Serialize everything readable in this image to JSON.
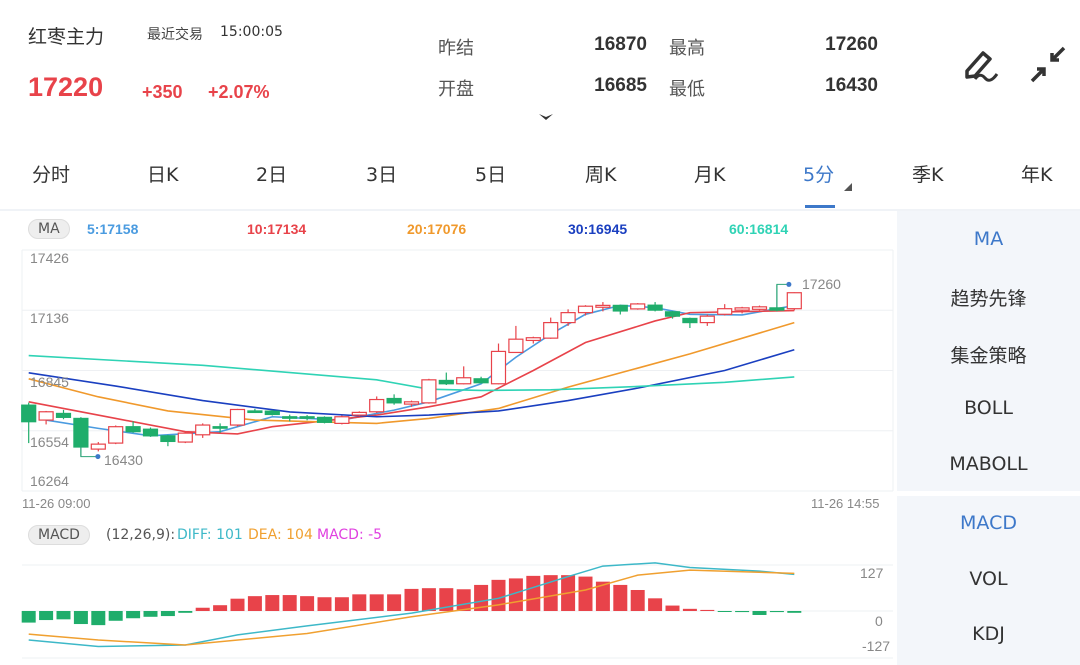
{
  "header": {
    "instrument": "红枣主力",
    "trade_label": "最近交易",
    "trade_time": "15:00:05",
    "last_price": "17220",
    "change": "+350",
    "change_pct": "+2.07%",
    "quotes": [
      {
        "label": "昨结",
        "value": "16870"
      },
      {
        "label": "最高",
        "value": "17260"
      },
      {
        "label": "开盘",
        "value": "16685"
      },
      {
        "label": "最低",
        "value": "16430"
      }
    ],
    "icons": [
      "draw-icon",
      "collapse-icon",
      "chevron-down-icon"
    ]
  },
  "tabs": [
    {
      "label": "分时"
    },
    {
      "label": "日K"
    },
    {
      "label": "2日"
    },
    {
      "label": "3日"
    },
    {
      "label": "5日"
    },
    {
      "label": "周K"
    },
    {
      "label": "月K"
    },
    {
      "label": "5分",
      "active": true
    },
    {
      "label": "季K"
    },
    {
      "label": "年K"
    }
  ],
  "side_main": [
    "MA",
    "趋势先锋",
    "集金策略",
    "BOLL",
    "MABOLL"
  ],
  "side_sub": [
    "MACD",
    "VOL",
    "KDJ"
  ],
  "colors": {
    "up": "#e8434a",
    "down": "#1fad6b",
    "accent": "#3d78c9",
    "ma5": "#4a9be0",
    "ma10": "#e8434a",
    "ma20": "#f0992c",
    "ma30": "#1a3fc0",
    "ma60": "#2fd3b5",
    "diff": "#3db8c8",
    "dea": "#f0a030",
    "macd": "#e040e0"
  },
  "main_chart": {
    "indicator_button": "MA",
    "ma_values": [
      {
        "label": "5:17158",
        "color": "#4a9be0"
      },
      {
        "label": "10:17134",
        "color": "#e8434a"
      },
      {
        "label": "20:17076",
        "color": "#f0992c"
      },
      {
        "label": "30:16945",
        "color": "#1a3fc0"
      },
      {
        "label": "60:16814",
        "color": "#2fd3b5"
      }
    ],
    "y_ticks": [
      "17426",
      "17136",
      "16845",
      "16554",
      "16264"
    ],
    "x_start": "11-26 09:00",
    "x_end": "11-26 14:55",
    "high_marker": "17260",
    "low_marker": "16430"
  },
  "sub_chart": {
    "indicator_button": "MACD",
    "params": "(12,26,9):",
    "diff_label": "DIFF: 101",
    "dea_label": "DEA: 104",
    "macd_label": "MACD: -5",
    "y_ticks": [
      "127",
      "0",
      "-127"
    ]
  },
  "chart_data": [
    {
      "type": "candlestick",
      "x_range": [
        "11-26 09:00",
        "11-26 14:55"
      ],
      "ylim": [
        16264,
        17426
      ],
      "grid": true,
      "candles_ohlc": [
        [
          16678,
          16690,
          16495,
          16598
        ],
        [
          16606,
          16650,
          16585,
          16646
        ],
        [
          16638,
          16655,
          16610,
          16619
        ],
        [
          16614,
          16620,
          16430,
          16476
        ],
        [
          16466,
          16500,
          16455,
          16490
        ],
        [
          16495,
          16580,
          16490,
          16574
        ],
        [
          16574,
          16600,
          16545,
          16550
        ],
        [
          16562,
          16570,
          16525,
          16530
        ],
        [
          16530,
          16535,
          16480,
          16503
        ],
        [
          16500,
          16548,
          16495,
          16543
        ],
        [
          16535,
          16590,
          16520,
          16582
        ],
        [
          16574,
          16590,
          16545,
          16572
        ],
        [
          16582,
          16660,
          16575,
          16657
        ],
        [
          16650,
          16660,
          16640,
          16648
        ],
        [
          16649,
          16655,
          16628,
          16633
        ],
        [
          16622,
          16632,
          16600,
          16620
        ],
        [
          16622,
          16630,
          16605,
          16621
        ],
        [
          16619,
          16624,
          16590,
          16595
        ],
        [
          16590,
          16628,
          16585,
          16622
        ],
        [
          16630,
          16648,
          16625,
          16643
        ],
        [
          16646,
          16720,
          16640,
          16705
        ],
        [
          16710,
          16730,
          16680,
          16689
        ],
        [
          16683,
          16700,
          16670,
          16694
        ],
        [
          16689,
          16805,
          16685,
          16800
        ],
        [
          16797,
          16835,
          16775,
          16781
        ],
        [
          16781,
          16865,
          16778,
          16810
        ],
        [
          16805,
          16815,
          16782,
          16786
        ],
        [
          16781,
          16975,
          16778,
          16937
        ],
        [
          16932,
          17060,
          16930,
          16996
        ],
        [
          16990,
          17008,
          16975,
          17003
        ],
        [
          17001,
          17100,
          16998,
          17076
        ],
        [
          17076,
          17140,
          17060,
          17124
        ],
        [
          17124,
          17160,
          17110,
          17155
        ],
        [
          17150,
          17175,
          17130,
          17159
        ],
        [
          17159,
          17162,
          17115,
          17132
        ],
        [
          17142,
          17170,
          17138,
          17166
        ],
        [
          17160,
          17175,
          17130,
          17136
        ],
        [
          17128,
          17132,
          17095,
          17107
        ],
        [
          17096,
          17100,
          17050,
          17076
        ],
        [
          17076,
          17115,
          17060,
          17107
        ],
        [
          17116,
          17165,
          17110,
          17143
        ],
        [
          17136,
          17152,
          17120,
          17147
        ],
        [
          17140,
          17158,
          17135,
          17152
        ],
        [
          17147,
          17260,
          17130,
          17136
        ],
        [
          17143,
          17222,
          17135,
          17220
        ]
      ],
      "series": [
        {
          "name": "MA5",
          "points": [
            [
              1,
              16606
            ],
            [
              4,
              16566
            ],
            [
              7,
              16530
            ],
            [
              11,
              16550
            ],
            [
              14,
              16622
            ],
            [
              18,
              16606
            ],
            [
              21,
              16654
            ],
            [
              23,
              16694
            ],
            [
              26,
              16781
            ],
            [
              28,
              16909
            ],
            [
              30,
              17020
            ],
            [
              32,
              17116
            ],
            [
              34,
              17159
            ],
            [
              36,
              17148
            ],
            [
              38,
              17116
            ],
            [
              41,
              17113
            ],
            [
              44,
              17158
            ]
          ]
        },
        {
          "name": "MA10",
          "points": [
            [
              0,
              16694
            ],
            [
              5,
              16614
            ],
            [
              9,
              16550
            ],
            [
              12,
              16539
            ],
            [
              14,
              16574
            ],
            [
              20,
              16630
            ],
            [
              23,
              16670
            ],
            [
              26,
              16718
            ],
            [
              29,
              16845
            ],
            [
              32,
              16980
            ],
            [
              36,
              17084
            ],
            [
              38,
              17124
            ],
            [
              44,
              17134
            ]
          ]
        },
        {
          "name": "MA20",
          "points": [
            [
              0,
              16805
            ],
            [
              4,
              16718
            ],
            [
              8,
              16650
            ],
            [
              13,
              16606
            ],
            [
              20,
              16590
            ],
            [
              23,
              16614
            ],
            [
              27,
              16662
            ],
            [
              31,
              16765
            ],
            [
              38,
              16925
            ],
            [
              44,
              17076
            ]
          ]
        },
        {
          "name": "MA30",
          "points": [
            [
              0,
              16834
            ],
            [
              5,
              16770
            ],
            [
              10,
              16700
            ],
            [
              15,
              16645
            ],
            [
              20,
              16622
            ],
            [
              23,
              16630
            ],
            [
              27,
              16650
            ],
            [
              31,
              16700
            ],
            [
              35,
              16760
            ],
            [
              40,
              16845
            ],
            [
              44,
              16945
            ]
          ]
        },
        {
          "name": "MA60",
          "points": [
            [
              0,
              16917
            ],
            [
              10,
              16870
            ],
            [
              20,
              16800
            ],
            [
              23,
              16755
            ],
            [
              26,
              16749
            ],
            [
              30,
              16752
            ],
            [
              35,
              16768
            ],
            [
              40,
              16788
            ],
            [
              44,
              16814
            ]
          ]
        }
      ]
    },
    {
      "type": "bar+line",
      "ylim": [
        -127,
        127
      ],
      "macd_hist": [
        -32,
        -25,
        -23,
        -36,
        -39,
        -27,
        -20,
        -16,
        -14,
        -5,
        9,
        16,
        34,
        41,
        44,
        44,
        41,
        38,
        38,
        46,
        46,
        46,
        61,
        63,
        63,
        60,
        72,
        86,
        90,
        97,
        99,
        99,
        95,
        81,
        72,
        58,
        35,
        15,
        6,
        3,
        -1,
        -3,
        -11,
        -3,
        -5
      ],
      "series": [
        {
          "name": "DIFF",
          "points": [
            [
              0,
              -80
            ],
            [
              4,
              -98
            ],
            [
              9,
              -94
            ],
            [
              12,
              -66
            ],
            [
              16,
              -41
            ],
            [
              22,
              -6
            ],
            [
              27,
              35
            ],
            [
              31,
              95
            ],
            [
              33,
              124
            ],
            [
              36,
              133
            ],
            [
              38,
              120
            ],
            [
              42,
              110
            ],
            [
              44,
              101
            ]
          ]
        },
        {
          "name": "DEA",
          "points": [
            [
              0,
              -64
            ],
            [
              4,
              -80
            ],
            [
              9,
              -94
            ],
            [
              16,
              -62
            ],
            [
              22,
              -16
            ],
            [
              27,
              17
            ],
            [
              32,
              58
            ],
            [
              35,
              99
            ],
            [
              38,
              113
            ],
            [
              44,
              104
            ]
          ]
        }
      ]
    }
  ]
}
